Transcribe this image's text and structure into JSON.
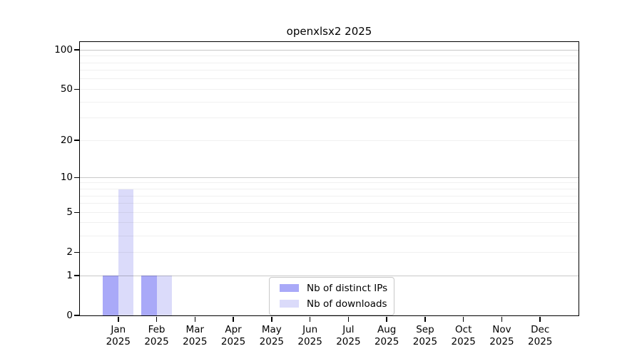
{
  "chart_data": {
    "type": "bar",
    "title": "openxlsx2 2025",
    "categories": [
      "Jan",
      "Feb",
      "Mar",
      "Apr",
      "May",
      "Jun",
      "Jul",
      "Aug",
      "Sep",
      "Oct",
      "Nov",
      "Dec"
    ],
    "x_year": "2025",
    "series": [
      {
        "name": "Nb of distinct IPs",
        "color": "#a9a9f8",
        "values": [
          1,
          1,
          0,
          0,
          0,
          0,
          0,
          0,
          0,
          0,
          0,
          0
        ]
      },
      {
        "name": "Nb of downloads",
        "color": "#dbdbfa",
        "values": [
          8,
          1,
          0,
          0,
          0,
          0,
          0,
          0,
          0,
          0,
          0,
          0
        ]
      }
    ],
    "y_axis": {
      "scale": "log1p",
      "ticks": [
        0,
        1,
        2,
        5,
        10,
        20,
        50,
        100
      ],
      "max": 115,
      "major_gridlines": [
        1,
        10,
        100
      ],
      "minor_gridlines": [
        2,
        3,
        4,
        5,
        6,
        7,
        8,
        9,
        20,
        30,
        40,
        50,
        60,
        70,
        80,
        90
      ]
    },
    "legend": {
      "position": "lower-center"
    },
    "xlabel": "",
    "ylabel": "",
    "grid": true
  },
  "colors": {
    "bar_distinct_ips": "#a9a9f8",
    "bar_downloads": "#dbdbfa",
    "major_grid": "#c9c9c9",
    "minor_grid": "#efefef",
    "axis": "#000000",
    "legend_border": "#c8c8c8",
    "background": "#ffffff"
  }
}
